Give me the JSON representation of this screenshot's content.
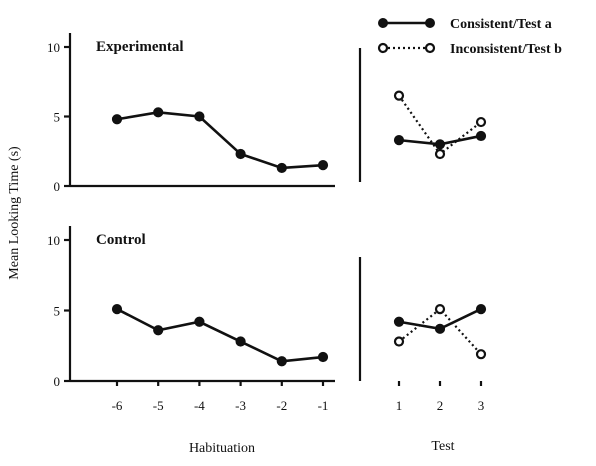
{
  "chart_data": {
    "type": "line",
    "ylabel": "Mean Looking Time (s)",
    "habituation_xlabel": "Habituation",
    "test_xlabel": "Test",
    "habituation_x": [
      -6,
      -5,
      -4,
      -3,
      -2,
      -1
    ],
    "test_x": [
      1,
      2,
      3
    ],
    "habituation_tick_labels": [
      "-6",
      "-5",
      "-4",
      "-3",
      "-2",
      "-1"
    ],
    "test_tick_labels": [
      "1",
      "2",
      "3"
    ],
    "ylim": [
      0,
      10
    ],
    "yticks": [
      0,
      5,
      10
    ],
    "legend_position": "top-right",
    "legend": [
      {
        "label": "Consistent/Test a",
        "style": "solid-filled"
      },
      {
        "label": "Inconsistent/Test b",
        "style": "dotted-open"
      }
    ],
    "panels": [
      {
        "title": "Experimental",
        "habituation": [
          4.8,
          5.3,
          5.0,
          2.3,
          1.3,
          1.5
        ],
        "consistent": [
          3.3,
          3.0,
          3.6
        ],
        "inconsistent": [
          6.5,
          2.3,
          4.6
        ]
      },
      {
        "title": "Control",
        "habituation": [
          5.1,
          3.6,
          4.2,
          2.8,
          1.4,
          1.7
        ],
        "consistent": [
          4.2,
          3.7,
          5.1
        ],
        "inconsistent": [
          2.8,
          5.1,
          1.9
        ]
      }
    ]
  }
}
